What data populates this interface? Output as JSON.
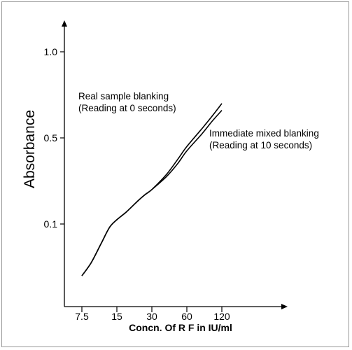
{
  "chart_data": {
    "type": "line",
    "title": "",
    "xlabel": "Concn. Of R F in IU/ml",
    "ylabel": "Absorbance",
    "x_ticks": [
      "7.5",
      "15",
      "30",
      "60",
      "120"
    ],
    "y_ticks": [
      "0.1",
      "0.5",
      "1.0"
    ],
    "grid": false,
    "series": [
      {
        "name": "Real sample blanking",
        "x": [
          7.5,
          9,
          11,
          13,
          15,
          18,
          22,
          26,
          30,
          40,
          50,
          60,
          80,
          100,
          120
        ],
        "y": [
          0.02,
          0.04,
          0.07,
          0.095,
          0.12,
          0.155,
          0.2,
          0.235,
          0.26,
          0.33,
          0.4,
          0.46,
          0.55,
          0.63,
          0.7
        ]
      },
      {
        "name": "Immediate mixed blanking",
        "x": [
          7.5,
          9,
          11,
          13,
          15,
          18,
          22,
          26,
          30,
          40,
          50,
          60,
          80,
          100,
          120
        ],
        "y": [
          0.02,
          0.04,
          0.07,
          0.095,
          0.12,
          0.155,
          0.2,
          0.235,
          0.26,
          0.32,
          0.38,
          0.44,
          0.52,
          0.6,
          0.66
        ]
      }
    ],
    "annotations": [
      {
        "line1": "Real sample blanking",
        "line2": "(Reading at 0 seconds)"
      },
      {
        "line1": "Immediate mixed blanking",
        "line2": "(Reading at 10 seconds)"
      }
    ]
  }
}
